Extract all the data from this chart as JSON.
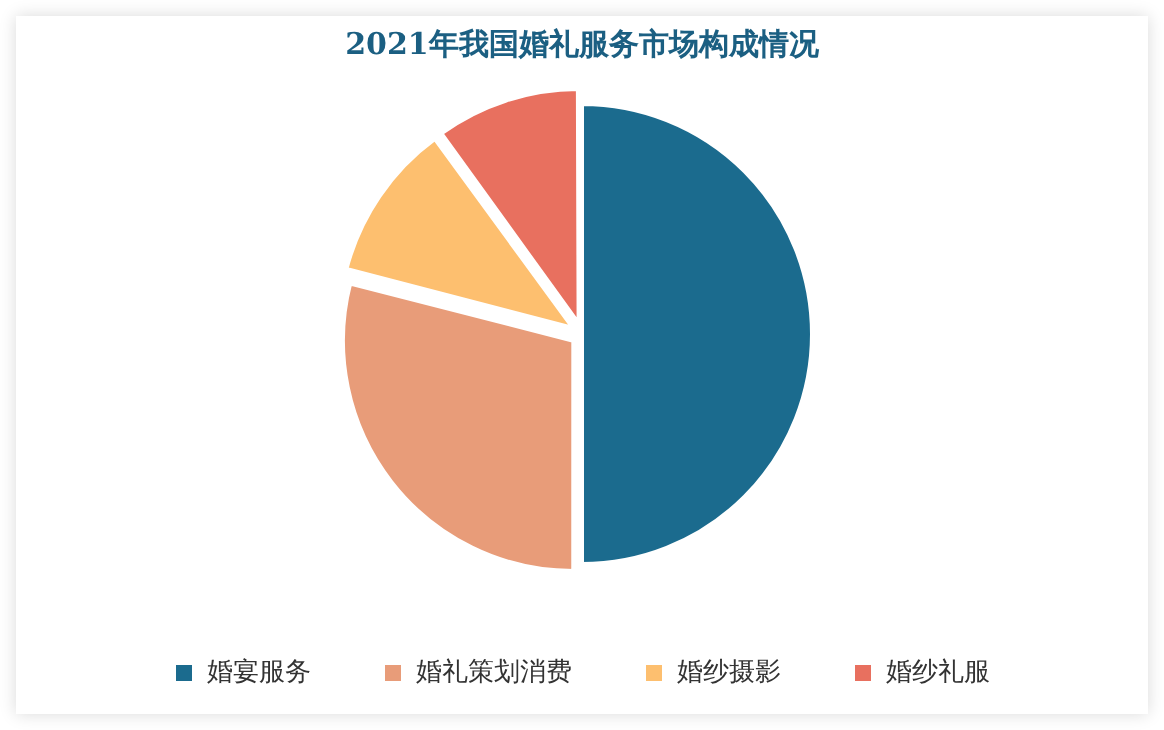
{
  "chart_data": {
    "type": "pie",
    "title": "2021年我国婚礼服务市场构成情况",
    "categories": [
      "婚宴服务",
      "婚礼策划消费",
      "婚纱摄影",
      "婚纱礼服"
    ],
    "values": [
      50,
      29,
      11,
      10
    ],
    "colors": [
      "#1b6b8e",
      "#e89c79",
      "#fdbf6f",
      "#e8705f"
    ],
    "legend": "bottom"
  }
}
